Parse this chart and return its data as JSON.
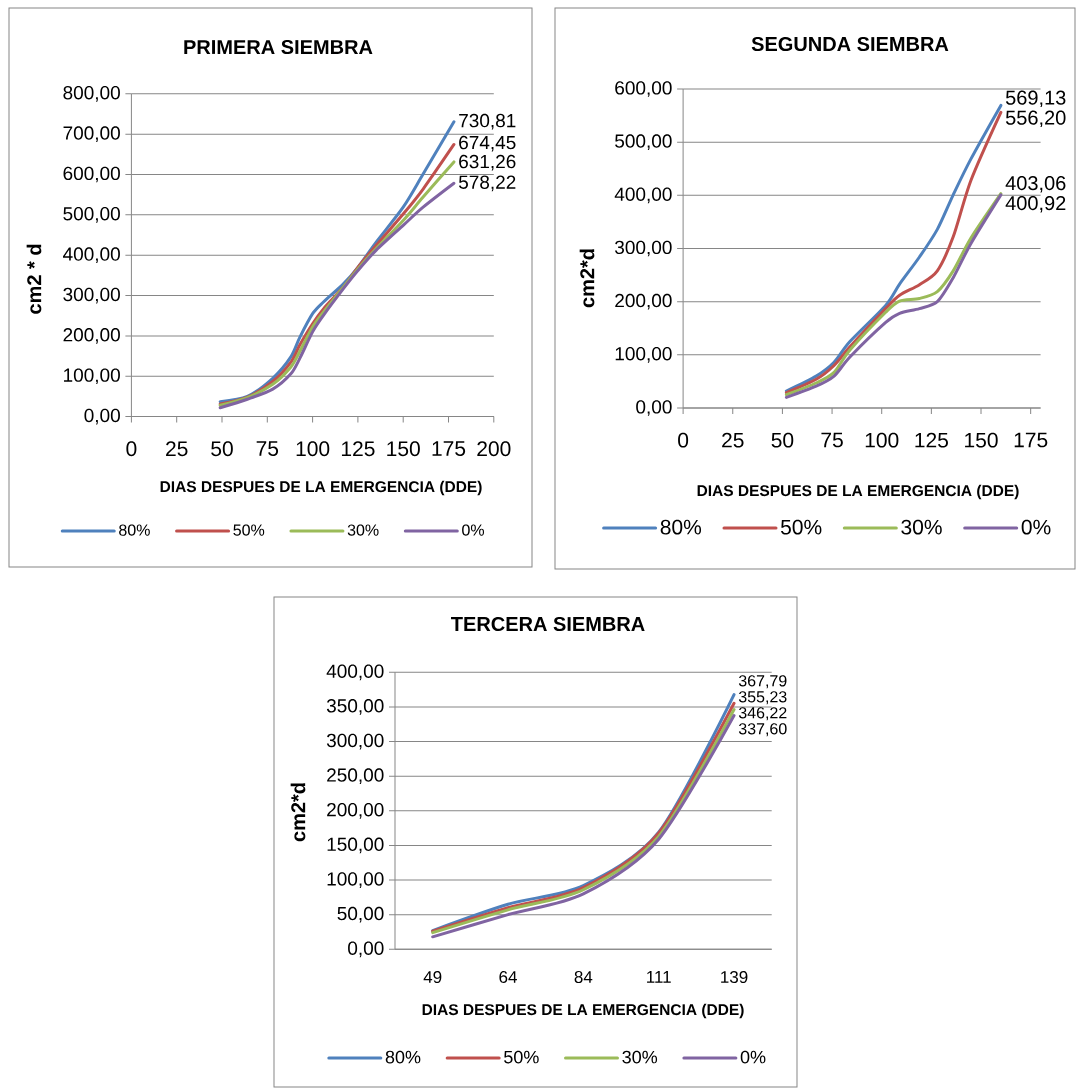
{
  "chart_data": [
    {
      "type": "line",
      "title": "PRIMERA SIEMBRA",
      "xlabel": "DIAS DESPUES DE LA EMERGENCIA (DDE)",
      "ylabel": "cm2 * d",
      "x": [
        49,
        64,
        78,
        88,
        93,
        100,
        106,
        117,
        125,
        135,
        150,
        161,
        178
      ],
      "series": [
        {
          "name": "80%",
          "color": "#4f81bd",
          "values": [
            37,
            50,
            95,
            148,
            197,
            255,
            284,
            329,
            370,
            432,
            519,
            601,
            730.81
          ],
          "value_labels": [
            null,
            null,
            null,
            null,
            null,
            null,
            null,
            null,
            null,
            null,
            null,
            null,
            "730,81"
          ]
        },
        {
          "name": "50%",
          "color": "#c0504d",
          "values": [
            31,
            48,
            87,
            135,
            178,
            230,
            267,
            321,
            370,
            424,
            502,
            564,
            674.45
          ],
          "value_labels": [
            null,
            null,
            null,
            null,
            null,
            null,
            null,
            null,
            null,
            null,
            null,
            null,
            "674,45"
          ]
        },
        {
          "name": "30%",
          "color": "#9bbb59",
          "values": [
            28,
            47,
            80,
            123,
            162,
            222,
            259,
            321,
            366,
            416,
            486,
            544,
            631.26
          ],
          "value_labels": [
            null,
            null,
            null,
            null,
            null,
            null,
            null,
            null,
            null,
            null,
            null,
            null,
            "631,26"
          ]
        },
        {
          "name": "0%",
          "color": "#8064a2",
          "values": [
            22,
            43,
            68,
            106,
            145,
            210,
            251,
            317,
            362,
            412,
            474,
            519,
            578.22
          ],
          "value_labels": [
            null,
            null,
            null,
            null,
            null,
            null,
            null,
            null,
            null,
            null,
            null,
            null,
            "578,22"
          ]
        }
      ],
      "xlim": [
        0,
        200
      ],
      "xticks": [
        0,
        25,
        50,
        75,
        100,
        125,
        150,
        175,
        200
      ],
      "ylim": [
        0,
        800
      ],
      "yticks": [
        {
          "value": 0,
          "label": "0,00"
        },
        {
          "value": 100,
          "label": "100,00"
        },
        {
          "value": 200,
          "label": "200,00"
        },
        {
          "value": 300,
          "label": "300,00"
        },
        {
          "value": 400,
          "label": "400,00"
        },
        {
          "value": 500,
          "label": "500,00"
        },
        {
          "value": 600,
          "label": "600,00"
        },
        {
          "value": 700,
          "label": "700,00"
        },
        {
          "value": 800,
          "label": "800,00"
        }
      ],
      "grid": "y",
      "legend": "bottom",
      "marker": "none"
    },
    {
      "type": "line",
      "title": "SEGUNDA SIEMBRA",
      "xlabel": "DIAS DESPUES DE LA EMERGENCIA (DDE)",
      "ylabel": "cm2*d",
      "x": [
        52,
        67,
        76,
        84,
        102,
        109,
        119,
        128,
        136,
        145,
        160
      ],
      "series": [
        {
          "name": "80%",
          "color": "#4f81bd",
          "values": [
            32,
            60,
            86,
            125,
            193,
            233,
            284,
            336,
            401,
            469,
            569.13
          ],
          "value_labels": [
            null,
            null,
            null,
            null,
            null,
            null,
            null,
            null,
            null,
            null,
            "569,13"
          ]
        },
        {
          "name": "50%",
          "color": "#c0504d",
          "values": [
            29,
            54,
            80,
            115,
            187,
            212,
            232,
            258,
            322,
            429,
            556.2
          ],
          "value_labels": [
            null,
            null,
            null,
            null,
            null,
            null,
            null,
            null,
            null,
            null,
            "556,20"
          ]
        },
        {
          "name": "30%",
          "color": "#9bbb59",
          "values": [
            25,
            47,
            67,
            109,
            180,
            201,
            206,
            219,
            258,
            320,
            403.06
          ],
          "value_labels": [
            null,
            null,
            null,
            null,
            null,
            null,
            null,
            null,
            null,
            null,
            "403,06"
          ]
        },
        {
          "name": "0%",
          "color": "#8064a2",
          "values": [
            20,
            41,
            60,
            96,
            161,
            178,
            187,
            200,
            245,
            310,
            400.92
          ],
          "value_labels": [
            null,
            null,
            null,
            null,
            null,
            null,
            null,
            null,
            null,
            null,
            "400,92"
          ]
        }
      ],
      "xlim": [
        0,
        180
      ],
      "xticks": [
        0,
        25,
        50,
        75,
        100,
        125,
        150,
        175
      ],
      "ylim": [
        0,
        600
      ],
      "yticks": [
        {
          "value": 0,
          "label": "0,00"
        },
        {
          "value": 100,
          "label": "100,00"
        },
        {
          "value": 200,
          "label": "200,00"
        },
        {
          "value": 300,
          "label": "300,00"
        },
        {
          "value": 400,
          "label": "400,00"
        },
        {
          "value": 500,
          "label": "500,00"
        },
        {
          "value": 600,
          "label": "600,00"
        }
      ],
      "grid": "y",
      "legend": "bottom",
      "marker": "none"
    },
    {
      "type": "line",
      "title": "TERCERA SIEMBRA",
      "xlabel": "DIAS DESPUES DE LA EMERGENCIA (DDE)",
      "ylabel": "cm2*d",
      "categories": [
        "49",
        "64",
        "84",
        "111",
        "139"
      ],
      "series": [
        {
          "name": "80%",
          "color": "#4f81bd",
          "values": [
            27,
            65,
            92,
            169,
            367.79
          ],
          "value_labels": [
            null,
            null,
            null,
            null,
            "367,79"
          ]
        },
        {
          "name": "50%",
          "color": "#c0504d",
          "values": [
            26,
            60,
            89,
            168,
            355.23
          ],
          "value_labels": [
            null,
            null,
            null,
            null,
            "355,23"
          ]
        },
        {
          "name": "30%",
          "color": "#9bbb59",
          "values": [
            24,
            57,
            86,
            163,
            346.22
          ],
          "value_labels": [
            null,
            null,
            null,
            null,
            "346,22"
          ]
        },
        {
          "name": "0%",
          "color": "#8064a2",
          "values": [
            18,
            50,
            80,
            159,
            337.6
          ],
          "value_labels": [
            null,
            null,
            null,
            null,
            "337,60"
          ]
        }
      ],
      "ylim": [
        0,
        400
      ],
      "yticks": [
        {
          "value": 0,
          "label": "0,00"
        },
        {
          "value": 50,
          "label": "50,00"
        },
        {
          "value": 100,
          "label": "100,00"
        },
        {
          "value": 150,
          "label": "150,00"
        },
        {
          "value": 200,
          "label": "200,00"
        },
        {
          "value": 250,
          "label": "250,00"
        },
        {
          "value": 300,
          "label": "300,00"
        },
        {
          "value": 350,
          "label": "350,00"
        },
        {
          "value": 400,
          "label": "400,00"
        }
      ],
      "grid": "y",
      "legend": "bottom",
      "marker": "none"
    }
  ]
}
